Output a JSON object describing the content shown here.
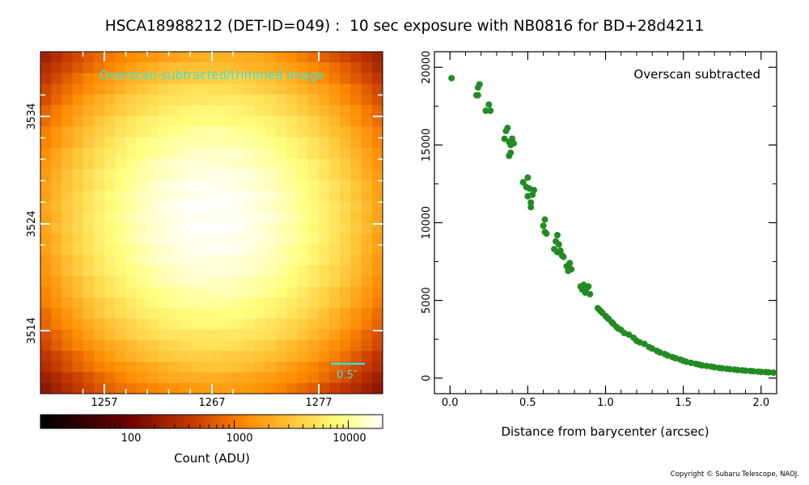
{
  "title": "HSCA18988212 (DET-ID=049) :  10 sec exposure with NB0816 for BD+28d4211",
  "copyright": "Copyright © Subaru Telescope, NAOJ.",
  "colors": {
    "scatter": "#228b22",
    "image_label": "#40e0d0",
    "scale_bar": "#40e0d0"
  },
  "chart_data": [
    {
      "type": "heatmap",
      "annotation": "Overscan-subtracted/trimmed image",
      "colormap": "afmhot",
      "scale": "log",
      "x_ticks": [
        "1257",
        "1267",
        "1277"
      ],
      "y_ticks": [
        "3534",
        "3524",
        "3514"
      ],
      "grid_size": 32,
      "peak_count": 19500,
      "scale_bar_label": "0.5″",
      "colorbar": {
        "label": "Count (ADU)",
        "ticks": [
          "100",
          "1000",
          "10000"
        ],
        "range": [
          20,
          20000
        ]
      }
    },
    {
      "type": "scatter",
      "annotation": "Overscan subtracted",
      "xlabel": "Distance from barycenter (arcsec)",
      "ylabel": "",
      "xlim": [
        -0.1,
        2.1
      ],
      "ylim": [
        -1000,
        21000
      ],
      "x_ticks": [
        0.0,
        0.5,
        1.0,
        1.5,
        2.0
      ],
      "x_tick_labels": [
        "0.0",
        "0.5",
        "1.0",
        "1.5",
        "2.0"
      ],
      "y_ticks": [
        0,
        5000,
        10000,
        15000,
        20000
      ],
      "y_tick_labels": [
        "0",
        "5000",
        "10000",
        "15000",
        "20000"
      ],
      "x": [
        0.01,
        0.17,
        0.18,
        0.18,
        0.19,
        0.23,
        0.25,
        0.26,
        0.35,
        0.36,
        0.37,
        0.38,
        0.38,
        0.39,
        0.39,
        0.4,
        0.41,
        0.47,
        0.49,
        0.5,
        0.5,
        0.51,
        0.52,
        0.52,
        0.53,
        0.54,
        0.6,
        0.61,
        0.61,
        0.62,
        0.67,
        0.68,
        0.69,
        0.69,
        0.7,
        0.71,
        0.72,
        0.73,
        0.75,
        0.76,
        0.77,
        0.78,
        0.84,
        0.85,
        0.86,
        0.87,
        0.87,
        0.88,
        0.89,
        0.9,
        0.95,
        0.96,
        0.97,
        0.98,
        1.0,
        1.01,
        1.02,
        1.04,
        1.05,
        1.07,
        1.08,
        1.1,
        1.12,
        1.15,
        1.18,
        1.2,
        1.22,
        1.25,
        1.28,
        1.3,
        1.33,
        1.35,
        1.38,
        1.4,
        1.43,
        1.45,
        1.48,
        1.5,
        1.52,
        1.55,
        1.58,
        1.6,
        1.62,
        1.65,
        1.68,
        1.7,
        1.73,
        1.75,
        1.78,
        1.8,
        1.83,
        1.85,
        1.88,
        1.9,
        1.93,
        1.95,
        1.98,
        2.0,
        2.03,
        2.05,
        2.08
      ],
      "y": [
        19300,
        18200,
        18700,
        18200,
        18900,
        17200,
        17600,
        17200,
        15400,
        15900,
        16100,
        15200,
        14300,
        15000,
        14500,
        15400,
        15100,
        12600,
        12300,
        12900,
        11700,
        12200,
        11000,
        11300,
        11800,
        12100,
        9800,
        10200,
        9400,
        9300,
        8300,
        8800,
        9200,
        8100,
        8600,
        8200,
        7900,
        7800,
        7200,
        6900,
        7400,
        7000,
        5900,
        5700,
        6000,
        5600,
        5500,
        5800,
        5900,
        5400,
        4500,
        4400,
        4300,
        4200,
        4000,
        3900,
        3800,
        3600,
        3500,
        3300,
        3200,
        3100,
        2900,
        2800,
        2600,
        2400,
        2300,
        2200,
        2000,
        1900,
        1750,
        1650,
        1550,
        1450,
        1350,
        1280,
        1200,
        1120,
        1050,
        980,
        920,
        870,
        820,
        780,
        740,
        700,
        660,
        630,
        600,
        570,
        550,
        520,
        500,
        480,
        460,
        440,
        420,
        400,
        390,
        370,
        350
      ]
    }
  ]
}
